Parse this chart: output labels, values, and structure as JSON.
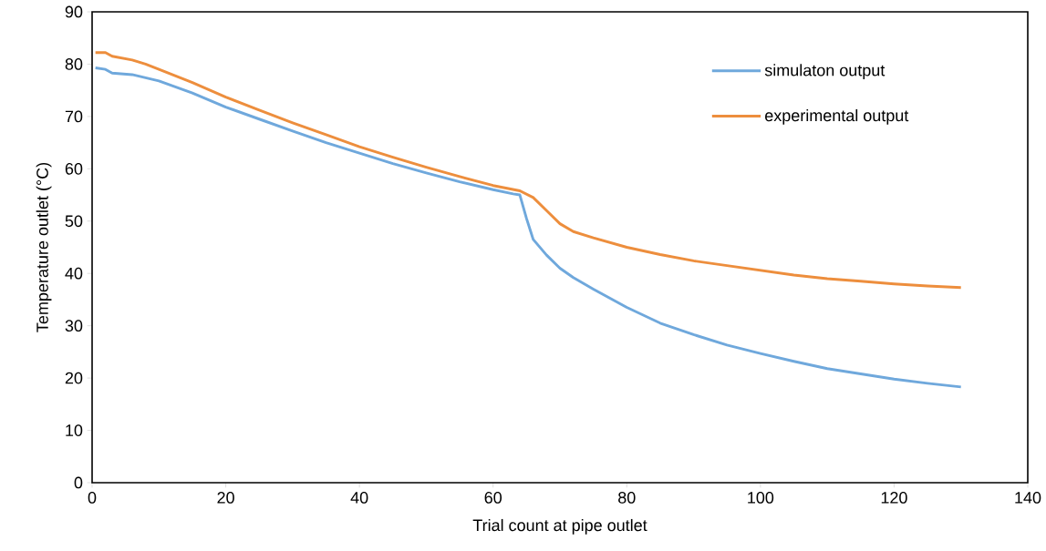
{
  "chart_data": {
    "type": "line",
    "xlabel": "Trial count at pipe outlet",
    "ylabel": "Temperature outlet (°C)",
    "xlim": [
      0,
      140
    ],
    "xticks": [
      0,
      20,
      40,
      60,
      80,
      100,
      120,
      140
    ],
    "ylim": [
      0,
      90
    ],
    "yticks": [
      0,
      10,
      20,
      30,
      40,
      50,
      60,
      70,
      80,
      90
    ],
    "grid": false,
    "legend": "top right",
    "marker": "none",
    "line_style": "solid",
    "series": [
      {
        "name": "simulaton output",
        "color": "#6fa8dc",
        "x": [
          0.5,
          2,
          3,
          6,
          10,
          15,
          20,
          25,
          30,
          35,
          40,
          45,
          50,
          55,
          60,
          63,
          64,
          65,
          66,
          68,
          70,
          72,
          75,
          80,
          85,
          90,
          95,
          100,
          105,
          110,
          115,
          120,
          125,
          130
        ],
        "values": [
          79.3,
          79.0,
          78.3,
          78.0,
          76.8,
          74.5,
          71.8,
          69.5,
          67.2,
          65.0,
          63.0,
          61.0,
          59.2,
          57.5,
          56.0,
          55.2,
          55.0,
          50.5,
          46.5,
          43.5,
          41.0,
          39.2,
          37.0,
          33.5,
          30.5,
          28.3,
          26.3,
          24.7,
          23.2,
          21.8,
          20.8,
          19.8,
          19.0,
          18.3
        ]
      },
      {
        "name": "experimental output",
        "color": "#ed8e3d",
        "x": [
          0.5,
          2,
          3,
          6,
          8,
          10,
          15,
          20,
          25,
          30,
          35,
          40,
          45,
          50,
          55,
          60,
          64,
          66,
          68,
          70,
          72,
          75,
          80,
          85,
          90,
          95,
          100,
          105,
          110,
          115,
          120,
          125,
          130
        ],
        "values": [
          82.2,
          82.2,
          81.5,
          80.8,
          80.0,
          79.0,
          76.5,
          73.7,
          71.2,
          68.8,
          66.5,
          64.2,
          62.2,
          60.3,
          58.5,
          56.8,
          55.8,
          54.5,
          52.0,
          49.5,
          48.0,
          46.8,
          45.0,
          43.6,
          42.4,
          41.5,
          40.6,
          39.7,
          39.0,
          38.5,
          38.0,
          37.6,
          37.3
        ]
      }
    ]
  }
}
